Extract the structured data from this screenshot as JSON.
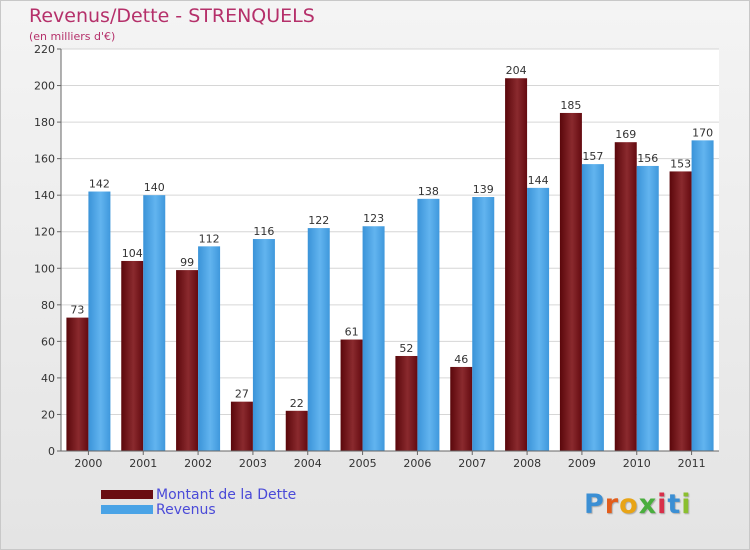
{
  "title": "Revenus/Dette - STRENQUELS",
  "subtitle": "(en milliers d'€)",
  "logo": {
    "text": "Proxiti",
    "colors": [
      "#3b8fd4",
      "#e25d1b",
      "#e8a416",
      "#4aae3e",
      "#d8304a",
      "#3b8fd4",
      "#8bbf2f"
    ]
  },
  "colors": {
    "dette": "#6a0d12",
    "revenus": "#4aa3e6",
    "title": "#b5306a",
    "legend_text": "#4a4ad8"
  },
  "chart_data": {
    "type": "bar",
    "categories": [
      "2000",
      "2001",
      "2002",
      "2003",
      "2004",
      "2005",
      "2006",
      "2007",
      "2008",
      "2009",
      "2010",
      "2011"
    ],
    "series": [
      {
        "name": "Montant de la Dette",
        "values": [
          73,
          104,
          99,
          27,
          22,
          61,
          52,
          46,
          204,
          185,
          169,
          153
        ]
      },
      {
        "name": "Revenus",
        "values": [
          142,
          140,
          112,
          116,
          122,
          123,
          138,
          139,
          144,
          157,
          156,
          170
        ]
      }
    ],
    "yticks": [
      "0",
      "20",
      "40",
      "60",
      "80",
      "100",
      "120",
      "140",
      "160",
      "180",
      "200",
      "220"
    ],
    "ylim": [
      0,
      220
    ],
    "grid": true,
    "legend_position": "bottom-left"
  }
}
